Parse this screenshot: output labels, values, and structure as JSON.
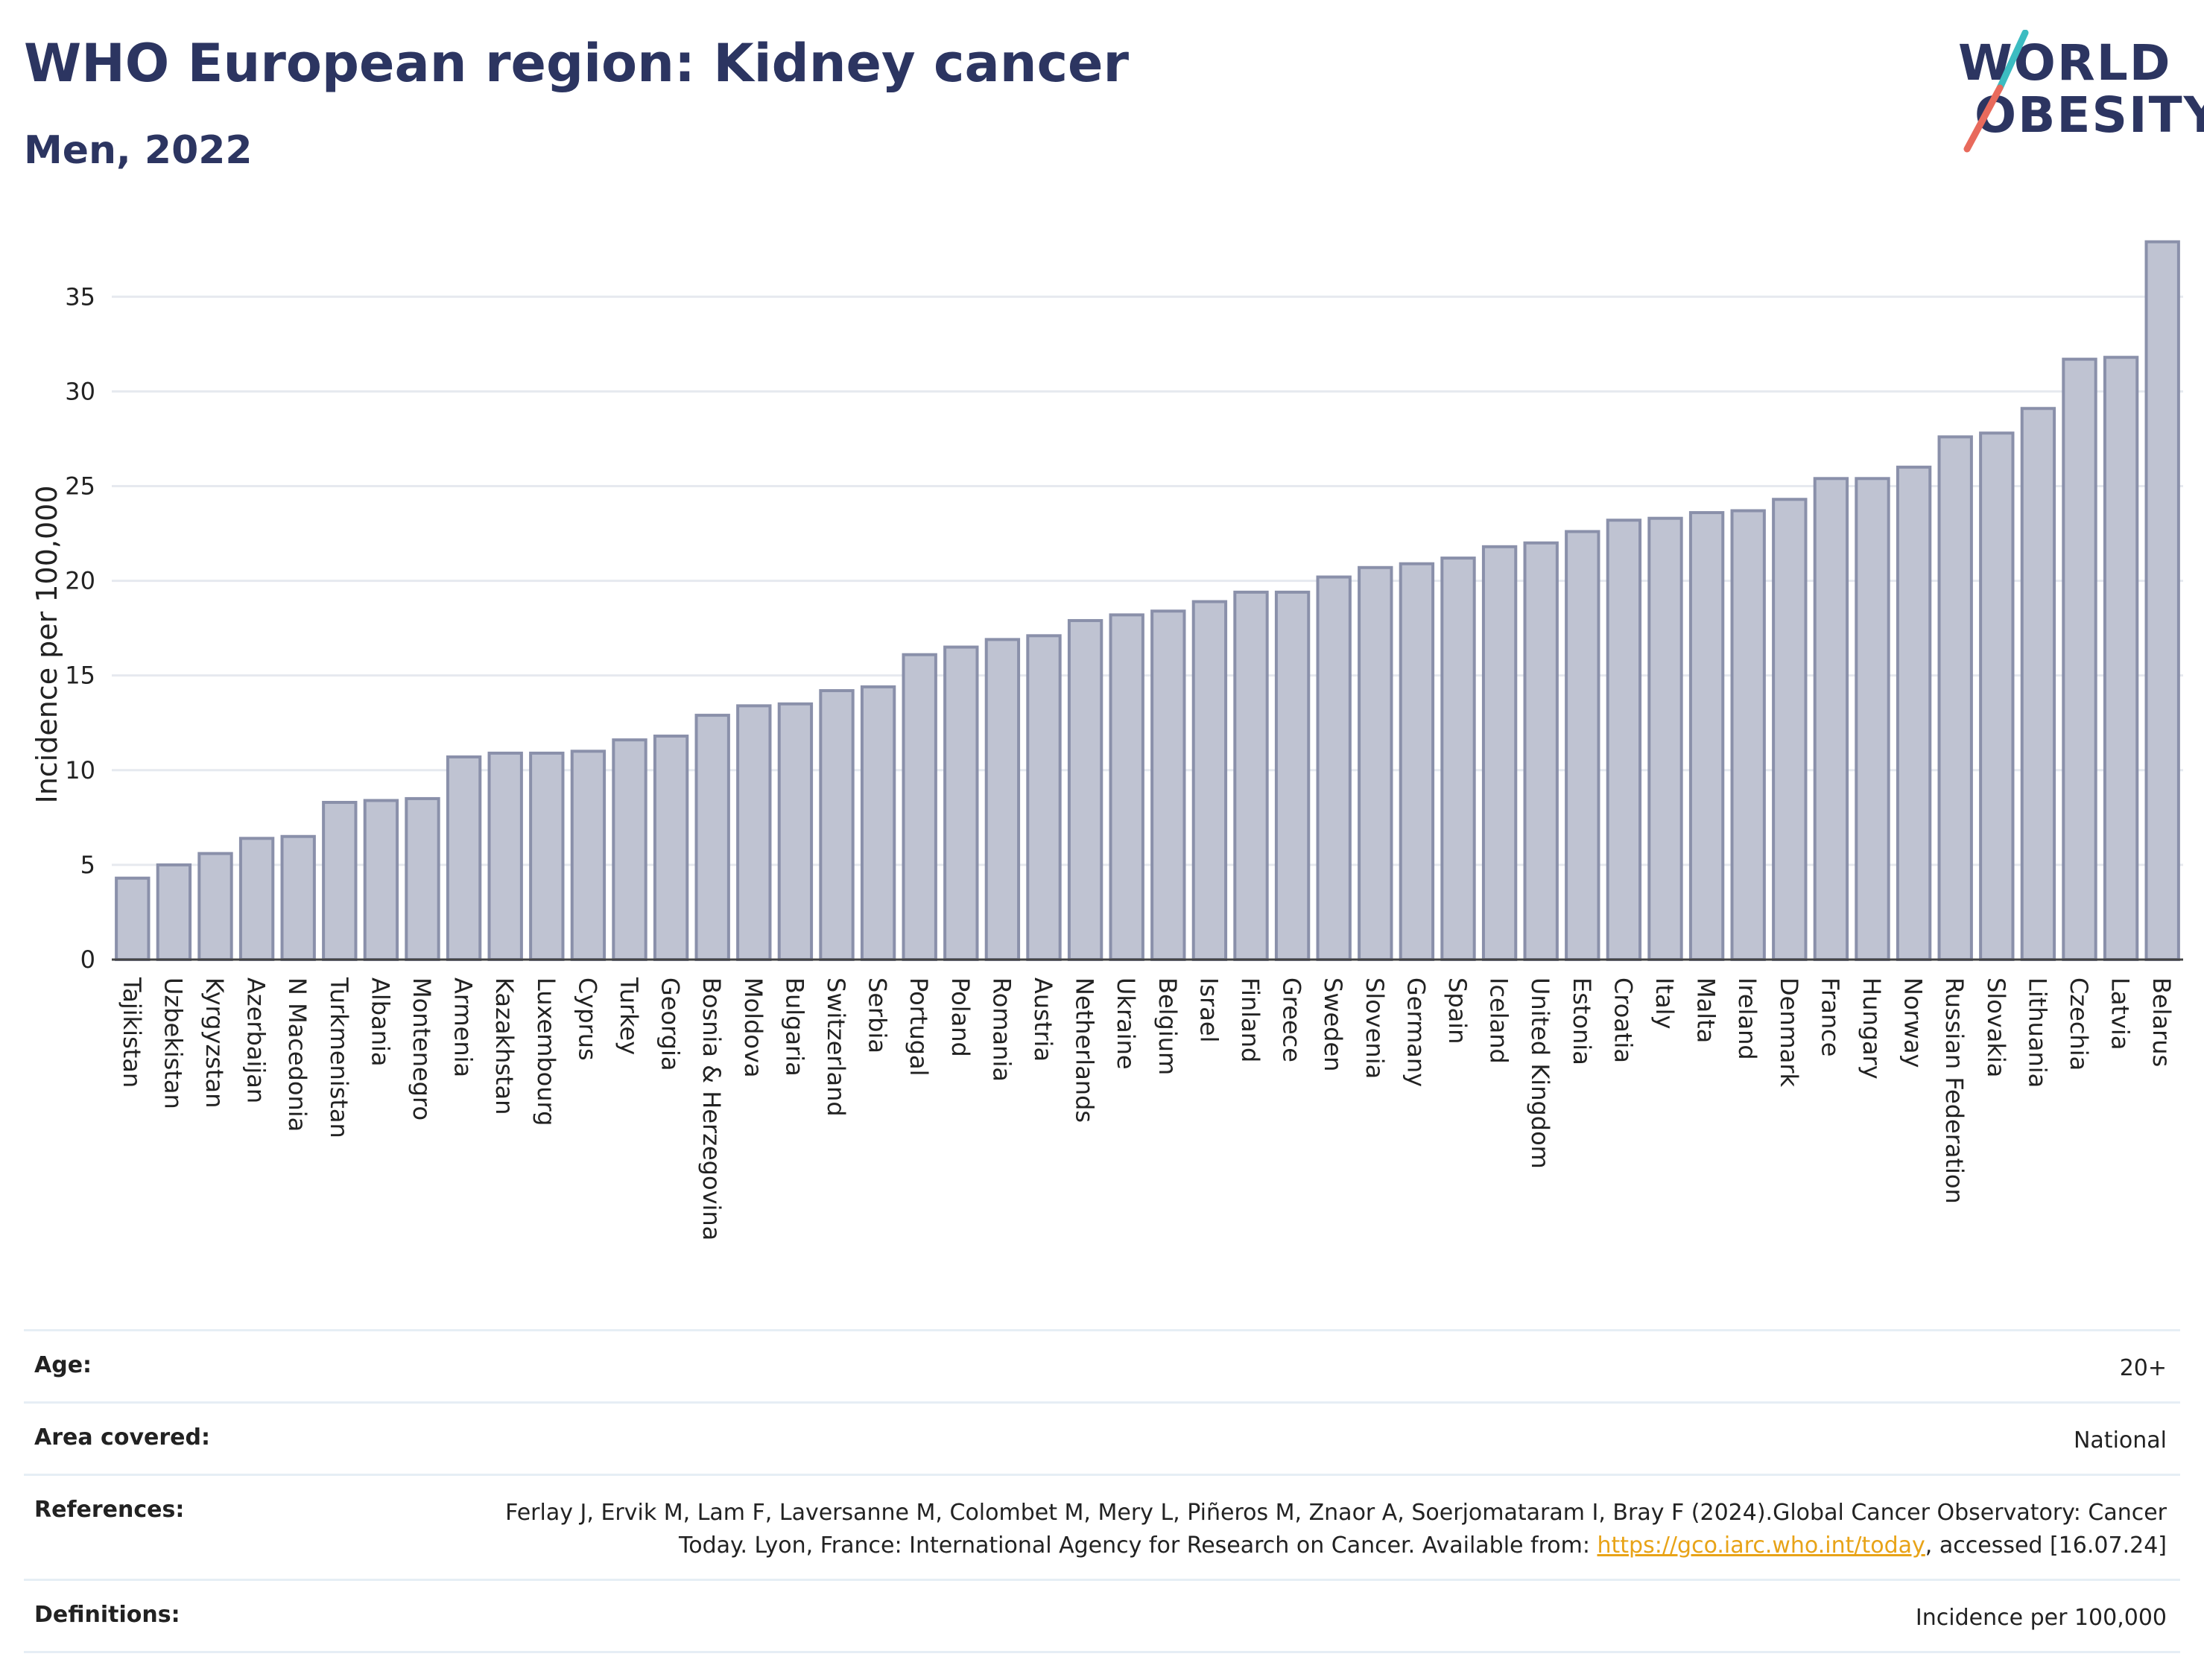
{
  "header": {
    "title": "WHO European region: Kidney cancer",
    "subtitle": "Men, 2022"
  },
  "logo": {
    "line1": "WORLD",
    "line2": "OBESITY",
    "colors": {
      "text": "#2c3561",
      "slash_top": "#3cbcc1",
      "slash_bottom": "#e86a5c"
    }
  },
  "chart_data": {
    "type": "bar",
    "title": "WHO European region: Kidney cancer",
    "subtitle": "Men, 2022",
    "ylabel": "Incidence per 100,000",
    "xlabel": "",
    "ylim": [
      0,
      38
    ],
    "yticks": [
      0,
      5,
      10,
      15,
      20,
      25,
      30,
      35
    ],
    "grid": true,
    "bar_color": "#bfc3d2",
    "bar_edge_color": "#8a90aa",
    "categories": [
      "Tajikistan",
      "Uzbekistan",
      "Kyrgyzstan",
      "Azerbaijan",
      "N Macedonia",
      "Turkmenistan",
      "Albania",
      "Montenegro",
      "Armenia",
      "Kazakhstan",
      "Luxembourg",
      "Cyprus",
      "Turkey",
      "Georgia",
      "Bosnia & Herzegovina",
      "Moldova",
      "Bulgaria",
      "Switzerland",
      "Serbia",
      "Portugal",
      "Poland",
      "Romania",
      "Austria",
      "Netherlands",
      "Ukraine",
      "Belgium",
      "Israel",
      "Finland",
      "Greece",
      "Sweden",
      "Slovenia",
      "Germany",
      "Spain",
      "Iceland",
      "United Kingdom",
      "Estonia",
      "Croatia",
      "Italy",
      "Malta",
      "Ireland",
      "Denmark",
      "France",
      "Hungary",
      "Norway",
      "Russian Federation",
      "Slovakia",
      "Lithuania",
      "Czechia",
      "Latvia",
      "Belarus"
    ],
    "values": [
      4.3,
      5.0,
      5.6,
      6.4,
      6.5,
      8.3,
      8.4,
      8.5,
      10.7,
      10.9,
      10.9,
      11.0,
      11.6,
      11.8,
      12.9,
      13.4,
      13.5,
      14.2,
      14.4,
      16.1,
      16.5,
      16.9,
      17.1,
      17.9,
      18.2,
      18.4,
      18.9,
      19.4,
      19.4,
      20.2,
      20.7,
      20.9,
      21.2,
      21.8,
      22.0,
      22.6,
      23.2,
      23.3,
      23.6,
      23.7,
      24.3,
      25.4,
      25.4,
      26.0,
      27.6,
      27.8,
      29.1,
      31.7,
      31.8,
      37.9
    ]
  },
  "meta": {
    "age_label": "Age:",
    "age_value": "20+",
    "area_label": "Area covered:",
    "area_value": "National",
    "references_label": "References:",
    "references_text_1": "Ferlay J, Ervik M, Lam F, Laversanne M, Colombet M, Mery L, Piñeros M, Znaor A, Soerjomataram I, Bray F (2024).Global Cancer Observatory: Cancer Today. Lyon, France: International Agency for Research on Cancer. Available from: ",
    "references_link": "https://gco.iarc.who.int/today",
    "references_text_2": ", accessed [16.07.24]",
    "definitions_label": "Definitions:",
    "definitions_value": "Incidence per 100,000"
  }
}
